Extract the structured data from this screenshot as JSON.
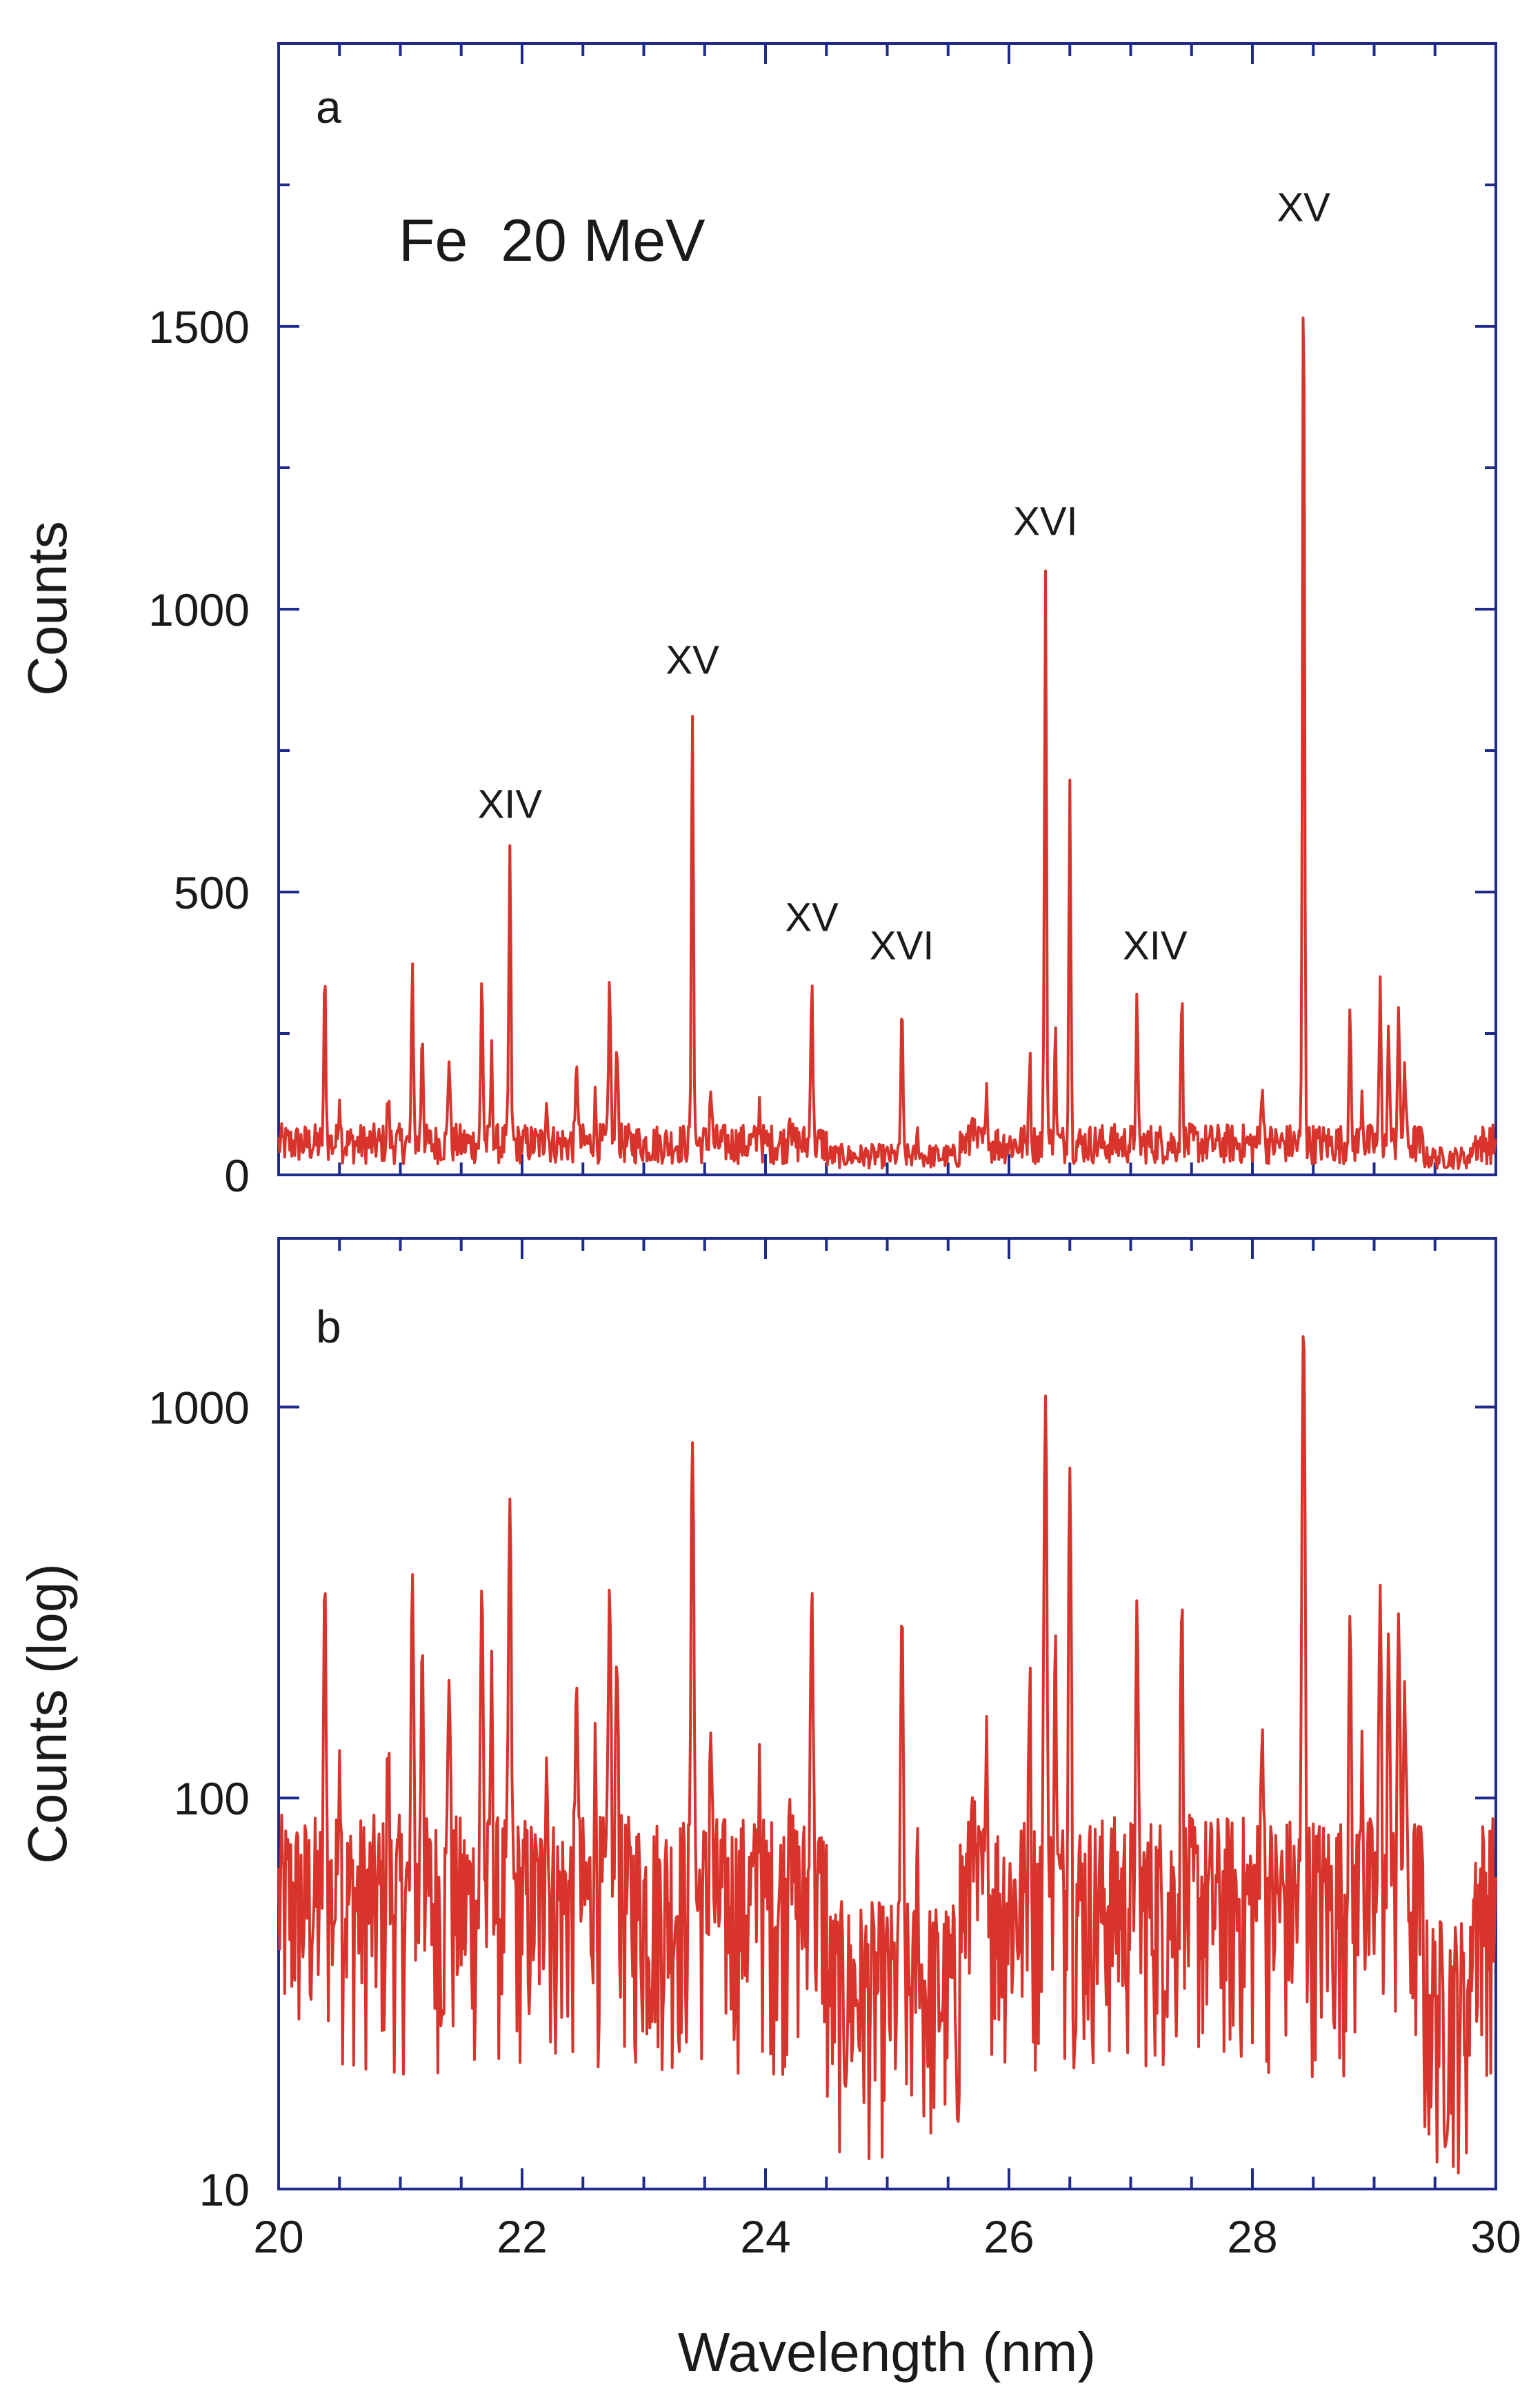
{
  "figure": {
    "frame_color": "#1f2a8c",
    "trace_color": "#d8342c",
    "xlabel": "Wavelength (nm)"
  },
  "chart_data": [
    {
      "panel": "a",
      "type": "line",
      "scale": "linear",
      "xlabel": "Wavelength (nm)",
      "ylabel": "Counts",
      "xlim": [
        20,
        30
      ],
      "ylim": [
        0,
        2000
      ],
      "x_ticks": [
        "20",
        "22",
        "24",
        "26",
        "28",
        "30"
      ],
      "y_ticks": [
        "0",
        "500",
        "1000",
        "1500"
      ],
      "y_tick_values": [
        0,
        500,
        1000,
        1500
      ],
      "text_annotation": "Fe  20 MeV",
      "line_labels": [
        {
          "text": "XIV",
          "x": 21.9,
          "y": 570
        },
        {
          "text": "XV",
          "x": 23.4,
          "y": 825
        },
        {
          "text": "XV",
          "x": 24.38,
          "y": 370
        },
        {
          "text": "XVI",
          "x": 25.12,
          "y": 320
        },
        {
          "text": "XVI",
          "x": 26.3,
          "y": 1070
        },
        {
          "text": "XIV",
          "x": 27.2,
          "y": 320
        },
        {
          "text": "XV",
          "x": 28.42,
          "y": 1625
        }
      ],
      "peaks": [
        {
          "x": 20.38,
          "y": 340
        },
        {
          "x": 20.5,
          "y": 150
        },
        {
          "x": 20.9,
          "y": 135
        },
        {
          "x": 21.1,
          "y": 360
        },
        {
          "x": 21.18,
          "y": 265
        },
        {
          "x": 21.4,
          "y": 220
        },
        {
          "x": 21.67,
          "y": 355
        },
        {
          "x": 21.75,
          "y": 210
        },
        {
          "x": 21.9,
          "y": 570
        },
        {
          "x": 22.2,
          "y": 145
        },
        {
          "x": 22.45,
          "y": 210
        },
        {
          "x": 22.6,
          "y": 130
        },
        {
          "x": 22.72,
          "y": 350
        },
        {
          "x": 22.78,
          "y": 250
        },
        {
          "x": 23.4,
          "y": 825
        },
        {
          "x": 23.55,
          "y": 160
        },
        {
          "x": 23.95,
          "y": 130
        },
        {
          "x": 24.2,
          "y": 130
        },
        {
          "x": 24.38,
          "y": 370
        },
        {
          "x": 25.12,
          "y": 320
        },
        {
          "x": 25.25,
          "y": 95
        },
        {
          "x": 25.7,
          "y": 120
        },
        {
          "x": 25.82,
          "y": 140
        },
        {
          "x": 26.17,
          "y": 210
        },
        {
          "x": 26.3,
          "y": 1070
        },
        {
          "x": 26.38,
          "y": 250
        },
        {
          "x": 26.5,
          "y": 700
        },
        {
          "x": 27.05,
          "y": 300
        },
        {
          "x": 27.42,
          "y": 320
        },
        {
          "x": 28.08,
          "y": 180
        },
        {
          "x": 28.42,
          "y": 1625
        },
        {
          "x": 28.8,
          "y": 285
        },
        {
          "x": 28.9,
          "y": 150
        },
        {
          "x": 29.05,
          "y": 330
        },
        {
          "x": 29.12,
          "y": 250
        },
        {
          "x": 29.2,
          "y": 300
        },
        {
          "x": 29.25,
          "y": 200
        }
      ],
      "baseline": 55
    },
    {
      "panel": "b",
      "type": "line",
      "scale": "log",
      "xlabel": "Wavelength (nm)",
      "ylabel": "Counts (log)",
      "xlim": [
        20,
        30
      ],
      "ylim": [
        10,
        2700
      ],
      "x_ticks": [
        "20",
        "22",
        "24",
        "26",
        "28",
        "30"
      ],
      "y_ticks": [
        "10",
        "100",
        "1000"
      ],
      "y_tick_values": [
        10,
        100,
        1000
      ],
      "same_spectrum_as_panel": "a"
    }
  ]
}
